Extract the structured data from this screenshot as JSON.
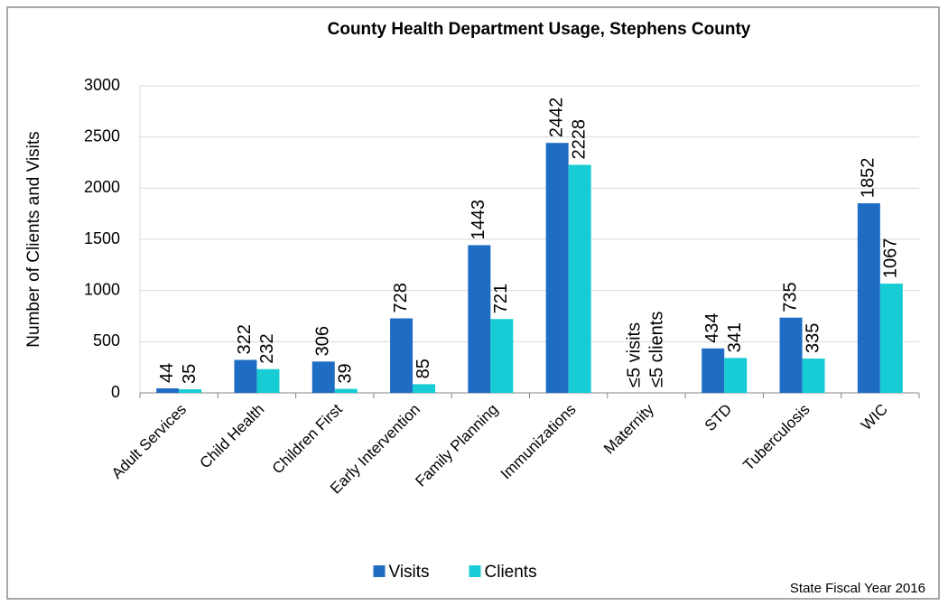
{
  "chart_data": {
    "type": "bar",
    "title": "County Health Department Usage, Stephens County",
    "y_label": "Number of Clients and Visits",
    "note": "State Fiscal Year 2016",
    "categories": [
      "Adult Services",
      "Child Health",
      "Children First",
      "Early Intervention",
      "Family Planning",
      "Immunizations",
      "Maternity",
      "STD",
      "Tuberculosis",
      "WIC"
    ],
    "series": [
      {
        "name": "Visits",
        "color": "#1f6cc4",
        "values": [
          44,
          322,
          306,
          728,
          1443,
          2442,
          null,
          434,
          735,
          1852
        ],
        "value_labels": [
          null,
          null,
          null,
          null,
          null,
          null,
          "≤5 visits",
          null,
          null,
          null
        ]
      },
      {
        "name": "Clients",
        "color": "#17ccd4",
        "values": [
          35,
          232,
          39,
          85,
          721,
          2228,
          null,
          341,
          335,
          1067
        ],
        "value_labels": [
          null,
          null,
          null,
          null,
          null,
          null,
          "≤5 clients",
          null,
          null,
          null
        ]
      }
    ],
    "ylim": [
      0,
      3000
    ],
    "yticks": [
      0,
      500,
      1000,
      1500,
      2000,
      2500,
      3000
    ],
    "grid": true,
    "legend": "bottom"
  }
}
